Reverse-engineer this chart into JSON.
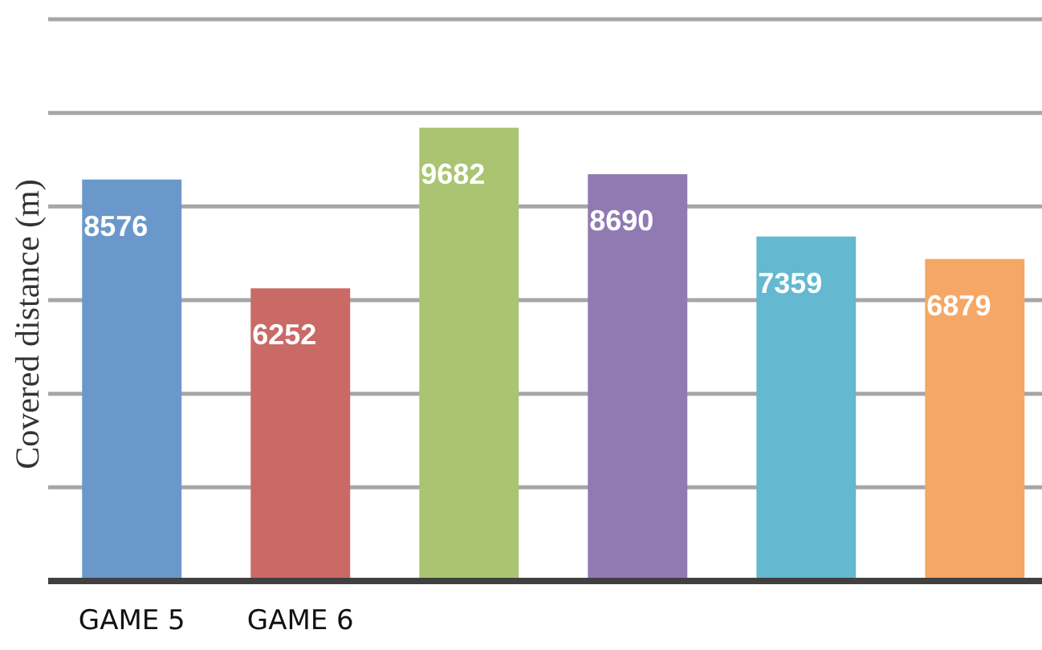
{
  "chart_data": {
    "type": "bar",
    "ylabel": "Covered distance (m)",
    "categories": [
      "GAME 5",
      "GAME 6",
      null,
      null,
      null,
      null
    ],
    "values": [
      8576,
      6252,
      9682,
      8690,
      7359,
      6879
    ],
    "colors": [
      "#6a98ca",
      "#c96a67",
      "#aac471",
      "#917ab2",
      "#64b8cf",
      "#f5a765"
    ],
    "ylim": [
      0,
      12000
    ],
    "yticks": [
      {
        "value": 0,
        "label": null
      },
      {
        "value": 2000,
        "label": null
      },
      {
        "value": 4000,
        "label": null
      },
      {
        "value": 6000,
        "label": null
      },
      {
        "value": 8000,
        "label": null
      },
      {
        "value": 10000,
        "label": null
      },
      {
        "value": 12000,
        "label": null
      }
    ],
    "grid": "y",
    "tick_labels": "x",
    "data_labels": true
  }
}
